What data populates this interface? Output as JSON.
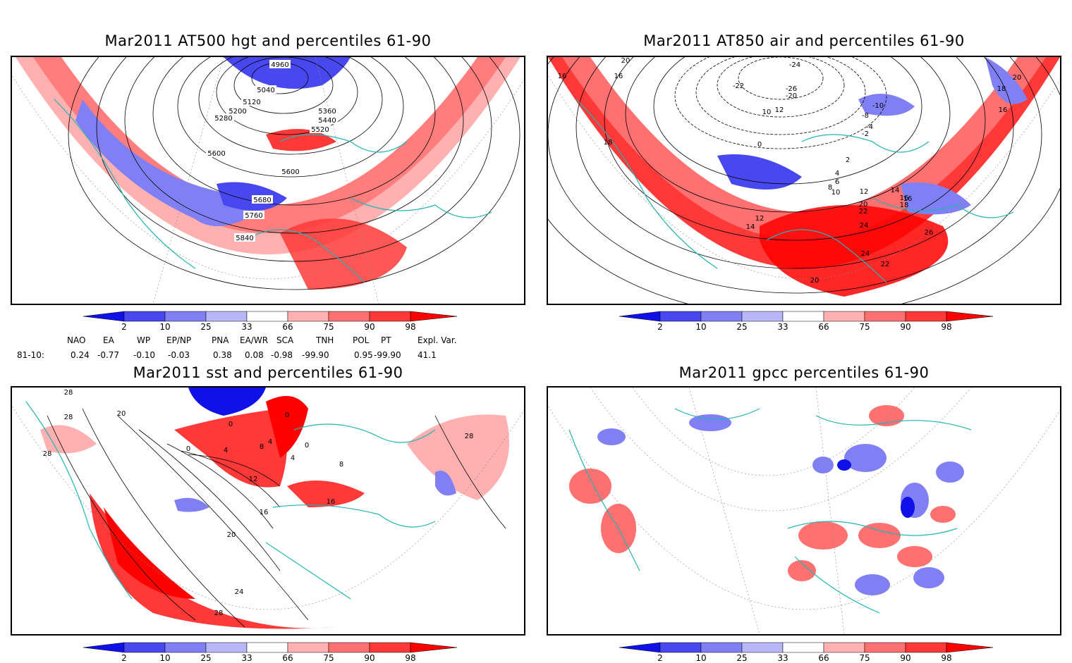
{
  "panels": [
    {
      "id": "p1",
      "title": "Mar2011 AT500 hgt and percentiles 61-90",
      "contour_labels": [
        "4960",
        "5040",
        "5120",
        "5200",
        "5280",
        "5360",
        "5440",
        "5520",
        "5600",
        "5600",
        "5680",
        "5760",
        "5840"
      ]
    },
    {
      "id": "p2",
      "title": "Mar2011 AT850 air and percentiles 61-90",
      "contour_labels": [
        "20",
        "16",
        "16",
        "18",
        "-24",
        "-22",
        "-26",
        "-20",
        "10",
        "12",
        "-10",
        "-8",
        "-4",
        "-2",
        "0",
        "2",
        "4",
        "6",
        "8",
        "10",
        "12",
        "14",
        "16",
        "18",
        "20",
        "22",
        "24",
        "24",
        "22",
        "20",
        "26",
        "20",
        "16",
        "18",
        "16",
        "14",
        "12"
      ]
    },
    {
      "id": "p3",
      "title": "Mar2011 sst and percentiles 61-90",
      "contour_labels": [
        "28",
        "28",
        "20",
        "28",
        "0",
        "0",
        "4",
        "8",
        "4",
        "0",
        "0",
        "4",
        "12",
        "16",
        "16",
        "8",
        "20",
        "24",
        "28",
        "28"
      ]
    },
    {
      "id": "p4",
      "title": "Mar2011 gpcc percentiles 61-90",
      "contour_labels": []
    }
  ],
  "colorbar": {
    "labels": [
      "2",
      "10",
      "25",
      "33",
      "66",
      "75",
      "90",
      "98"
    ],
    "colors": [
      "#1010e8",
      "#4848f0",
      "#8080f4",
      "#b8b8f8",
      "#ffffff",
      "#ffb0b0",
      "#ff7070",
      "#ff3838",
      "#ff0000"
    ]
  },
  "indices": {
    "header": [
      "NAO",
      "EA",
      "WP",
      "EP/NP",
      "PNA",
      "EA/WR",
      "SCA",
      "TNH",
      "POL",
      "PT",
      "Expl. Var."
    ],
    "row_label": "81-10:",
    "values": [
      "0.24",
      "-0.77",
      "-0.10",
      "-0.03",
      "0.38",
      "0.08",
      "-0.98",
      "-99.90",
      "0.95",
      "-99.90",
      "41.1"
    ]
  },
  "colors": {
    "coast": "#22b5b5",
    "grid": "#888888",
    "contour": "#000000"
  }
}
